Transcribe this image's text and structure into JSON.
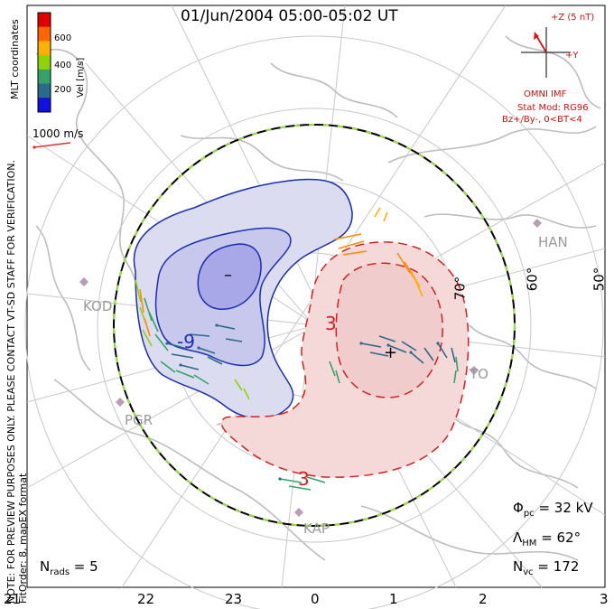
{
  "title": "01/Jun/2004 05:00-05:02 UT",
  "coordinates_label": "MLT coordinates",
  "note_line1": "NOTE: FOR PREVIEW PURPOSES ONLY. PLEASE CONTACT VT-SD STAFF FOR VERIFICATION.",
  "note_line2": "FitOrder: 8, mapEX format",
  "colorbar": {
    "label": "Vel [m/s]",
    "ticks": [
      "600",
      "400",
      "200"
    ],
    "colors": [
      "#e00000",
      "#ff6600",
      "#ffb000",
      "#8fd400",
      "#33a36a",
      "#2a6a8a",
      "#1010e0"
    ]
  },
  "scale_label": "1000 m/s",
  "imf": {
    "z_label": "+Z (5 nT)",
    "y_label": "+Y",
    "source_label": "OMNI IMF",
    "model_line1": "Stat Mod: RG96",
    "model_line2": "Bz+/By-, 0<BT<4"
  },
  "stats": {
    "phi_pc": "32 kV",
    "lambda_hm": "62°",
    "n_vc": "172",
    "n_rads": "5"
  },
  "mlt_ticks": [
    "21",
    "22",
    "23",
    "0",
    "1",
    "2",
    "3"
  ],
  "lat_labels": [
    "70°",
    "60°",
    "50°"
  ],
  "stations": [
    "KOD",
    "PGR",
    "KAP",
    "HAN",
    "TO"
  ],
  "contour_labels": [
    "-9",
    "3",
    "3"
  ],
  "extremum_marks": [
    "–",
    "+"
  ]
}
